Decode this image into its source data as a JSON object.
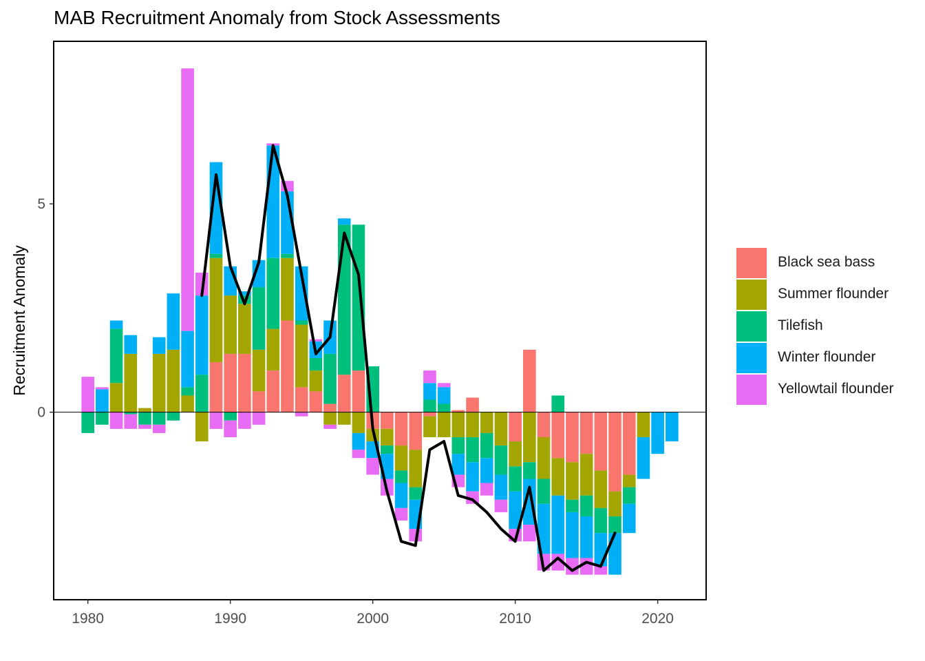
{
  "chart_data": {
    "type": "bar",
    "stacked": true,
    "title": "MAB Recruitment Anomaly from Stock Assessments",
    "xlabel": "",
    "ylabel": "Recruitment Anomaly",
    "xlim": [
      1977.6,
      2023.4
    ],
    "ylim": [
      -4.5,
      8.9
    ],
    "x_ticks": [
      1980,
      1990,
      2000,
      2010,
      2020
    ],
    "y_ticks": [
      0,
      5
    ],
    "legend_position": "right",
    "grid": false,
    "series": [
      {
        "name": "Black sea bass",
        "color": "#F8766D",
        "values": {
          "1989": 1.2,
          "1990": 1.4,
          "1991": 1.4,
          "1992": 0.5,
          "1993": 1.0,
          "1994": 2.2,
          "1995": 0.6,
          "1996": 0.5,
          "1997": 0.2,
          "1998": 0.9,
          "1999": 1.0,
          "2000": -0.4,
          "2001": -0.4,
          "2002": -0.8,
          "2003": -0.9,
          "2004": -0.1,
          "2005": 0.0,
          "2006": 0.05,
          "2007": 0.35,
          "2008": 0.0,
          "2009": 0.0,
          "2010": -0.7,
          "2011": 1.5,
          "2012": -0.6,
          "2013": -1.1,
          "2014": -1.2,
          "2015": -1.0,
          "2016": -1.4,
          "2017": -1.9,
          "2018": -1.5
        }
      },
      {
        "name": "Summer flounder",
        "color": "#A3A500",
        "values": {
          "1982": 0.7,
          "1983": 1.4,
          "1984": 0.1,
          "1985": 1.4,
          "1986": 1.5,
          "1987": 0.4,
          "1988": -0.7,
          "1989": 2.5,
          "1990": 1.4,
          "1991": 1.2,
          "1992": 1.0,
          "1993": 1.0,
          "1994": 1.5,
          "1995": 1.5,
          "1996": 0.5,
          "1997": -0.3,
          "1998": -0.3,
          "1999": -0.5,
          "2000": -0.3,
          "2001": -0.4,
          "2002": -0.6,
          "2003": -0.9,
          "2004": -0.5,
          "2005": -0.6,
          "2006": -0.6,
          "2007": -0.6,
          "2008": -0.5,
          "2009": -0.8,
          "2010": -0.6,
          "2011": -1.2,
          "2012": -1.0,
          "2013": -0.9,
          "2014": -0.9,
          "2015": -1.0,
          "2016": -0.9,
          "2017": -0.6,
          "2018": -0.3,
          "2019": -0.6
        }
      },
      {
        "name": "Tilefish",
        "color": "#00BF7D",
        "values": {
          "1980": -0.5,
          "1981": -0.3,
          "1982": 1.3,
          "1983": -0.05,
          "1984": -0.3,
          "1985": -0.3,
          "1986": -0.2,
          "1987": 0.2,
          "1988": 0.9,
          "1989": 0.1,
          "1990": -0.2,
          "1991": 0.2,
          "1992": 1.5,
          "1993": 1.7,
          "1994": 0.1,
          "1995": 0.1,
          "1996": 0.3,
          "1997": 1.2,
          "1998": 3.6,
          "1999": 3.5,
          "2000": 1.1,
          "2001": -0.2,
          "2002": -0.3,
          "2003": -0.3,
          "2004": 0.3,
          "2005": 0.2,
          "2006": -0.4,
          "2007": -0.6,
          "2008": -0.6,
          "2009": -0.7,
          "2010": -0.6,
          "2011": -0.4,
          "2012": -0.6,
          "2013": 0.4,
          "2014": -0.3,
          "2015": -0.5,
          "2016": -0.6,
          "2017": -0.4,
          "2018": -0.4
        }
      },
      {
        "name": "Winter flounder",
        "color": "#00B0F6",
        "values": {
          "1981": 0.55,
          "1982": 0.2,
          "1983": 0.45,
          "1985": 0.4,
          "1986": 1.35,
          "1987": 1.35,
          "1988": 1.9,
          "1989": 2.2,
          "1990": 0.7,
          "1991": 0.1,
          "1992": 0.65,
          "1993": 2.7,
          "1994": 1.5,
          "1995": 1.3,
          "1996": 0.4,
          "1997": 0.8,
          "1998": 0.15,
          "1999": -0.4,
          "2000": -0.4,
          "2001": -0.6,
          "2002": -0.6,
          "2003": -0.7,
          "2004": 0.4,
          "2005": 0.4,
          "2006": -0.5,
          "2007": -0.7,
          "2008": -0.6,
          "2009": -0.6,
          "2010": -0.9,
          "2011": -1.1,
          "2012": -1.2,
          "2013": -1.4,
          "2014": -1.1,
          "2015": -1.0,
          "2016": -0.8,
          "2017": -1.0,
          "2018": -0.7,
          "2019": -1.0,
          "2020": -1.0,
          "2021": -0.7
        }
      },
      {
        "name": "Yellowtail flounder",
        "color": "#E76BF3",
        "values": {
          "1980": 0.85,
          "1981": 0.05,
          "1982": -0.4,
          "1983": -0.35,
          "1984": -0.1,
          "1985": -0.2,
          "1987": 6.3,
          "1988": 0.55,
          "1989": -0.4,
          "1990": -0.4,
          "1991": -0.4,
          "1992": -0.3,
          "1993": 0.05,
          "1994": 0.25,
          "1995": -0.1,
          "1996": 0.05,
          "1997": -0.1,
          "1998": 0.0,
          "1999": -0.2,
          "2000": -0.4,
          "2001": -0.4,
          "2002": -0.3,
          "2003": -0.3,
          "2004": 0.3,
          "2005": 0.1,
          "2006": -0.3,
          "2007": -0.3,
          "2008": -0.3,
          "2009": -0.3,
          "2010": -0.3,
          "2011": -0.4,
          "2012": -0.4,
          "2013": -0.4,
          "2014": -0.4,
          "2015": -0.4,
          "2016": -0.2
        }
      }
    ],
    "total_line": {
      "color": "#000000",
      "x": [
        1988,
        1989,
        1990,
        1991,
        1992,
        1993,
        1994,
        1995,
        1996,
        1997,
        1998,
        1999,
        2000,
        2001,
        2002,
        2003,
        2004,
        2005,
        2006,
        2007,
        2008,
        2009,
        2010,
        2011,
        2012,
        2013,
        2014,
        2015,
        2016,
        2017
      ],
      "y": [
        2.8,
        5.7,
        3.5,
        2.6,
        3.6,
        6.4,
        5.2,
        3.3,
        1.4,
        1.8,
        4.3,
        3.3,
        -0.4,
        -1.9,
        -3.1,
        -3.2,
        -0.9,
        -0.7,
        -2.0,
        -2.1,
        -2.4,
        -2.8,
        -3.1,
        -1.8,
        -3.8,
        -3.5,
        -3.8,
        -3.6,
        -3.7,
        -2.9
      ]
    }
  }
}
